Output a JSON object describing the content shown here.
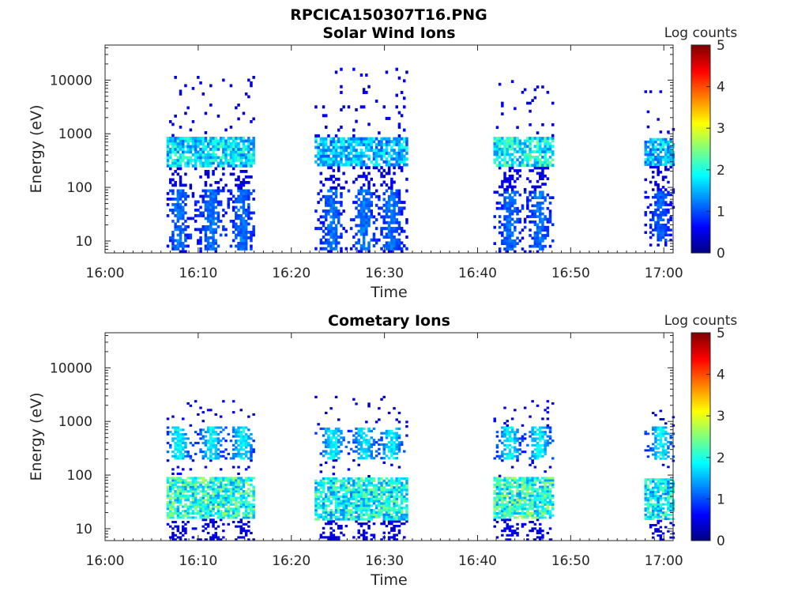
{
  "figure": {
    "title": "RPCICA150307T16.PNG"
  },
  "chart_data": [
    {
      "type": "heatmap",
      "title": "Solar Wind Ions",
      "xlabel": "Time",
      "ylabel": "Energy (eV)",
      "x_tick_labels": [
        "16:00",
        "16:10",
        "16:20",
        "16:30",
        "16:40",
        "16:50",
        "17:00"
      ],
      "x_ticks_minutes": [
        0,
        10,
        20,
        30,
        40,
        50,
        60
      ],
      "xlim_minutes": [
        0,
        61
      ],
      "y_scale": "log",
      "ylim": [
        6,
        45000
      ],
      "y_tick_labels": [
        "10",
        "100",
        "1000",
        "10000"
      ],
      "y_ticks": [
        10,
        100,
        1000,
        10000
      ],
      "colorbar": {
        "label": "Log counts",
        "range": [
          0,
          5
        ],
        "tick_labels": [
          "0",
          "1",
          "2",
          "3",
          "4",
          "5"
        ],
        "colormap": "jet"
      },
      "clusters": [
        {
          "start": 6.6,
          "end": 16.0,
          "emin": 6,
          "emax": 12000,
          "core_emin": 250,
          "core_emax": 900,
          "core_level": 2.0,
          "low_emin": 7,
          "low_emax": 90,
          "low_level": 0.8,
          "peaks_minutes": [
            7.8,
            11.3,
            14.6
          ]
        },
        {
          "start": 22.5,
          "end": 32.3,
          "emin": 6,
          "emax": 17000,
          "core_emin": 250,
          "core_emax": 900,
          "core_level": 1.8,
          "low_emin": 7,
          "low_emax": 90,
          "low_level": 0.8,
          "peaks_minutes": [
            24.3,
            27.7,
            30.6
          ]
        },
        {
          "start": 41.7,
          "end": 48.0,
          "emin": 6,
          "emax": 10000,
          "core_emin": 250,
          "core_emax": 900,
          "core_level": 2.2,
          "low_emin": 7,
          "low_emax": 90,
          "low_level": 0.8,
          "peaks_minutes": [
            43.3,
            46.5
          ]
        },
        {
          "start": 57.9,
          "end": 61.0,
          "emin": 8,
          "emax": 8000,
          "core_emin": 250,
          "core_emax": 800,
          "core_level": 1.8,
          "low_emin": 10,
          "low_emax": 90,
          "low_level": 0.7,
          "peaks_minutes": [
            59.5
          ]
        }
      ]
    },
    {
      "type": "heatmap",
      "title": "Cometary Ions",
      "xlabel": "Time",
      "ylabel": "Energy (eV)",
      "x_tick_labels": [
        "16:00",
        "16:10",
        "16:20",
        "16:30",
        "16:40",
        "16:50",
        "17:00"
      ],
      "x_ticks_minutes": [
        0,
        10,
        20,
        30,
        40,
        50,
        60
      ],
      "xlim_minutes": [
        0,
        61
      ],
      "y_scale": "log",
      "ylim": [
        6,
        45000
      ],
      "y_tick_labels": [
        "10",
        "100",
        "1000",
        "10000"
      ],
      "y_ticks": [
        10,
        100,
        1000,
        10000
      ],
      "colorbar": {
        "label": "Log counts",
        "range": [
          0,
          5
        ],
        "tick_labels": [
          "0",
          "1",
          "2",
          "3",
          "4",
          "5"
        ],
        "colormap": "jet"
      },
      "clusters": [
        {
          "start": 6.6,
          "end": 16.0,
          "emin": 6,
          "emax": 2500,
          "core_emin": 15,
          "core_emax": 90,
          "core_level": 2.4,
          "low_emin": 200,
          "low_emax": 800,
          "low_level": 1.0,
          "peaks_minutes": [
            7.8,
            11.3,
            14.6
          ]
        },
        {
          "start": 22.5,
          "end": 32.3,
          "emin": 6,
          "emax": 3000,
          "core_emin": 15,
          "core_emax": 90,
          "core_level": 2.2,
          "low_emin": 200,
          "low_emax": 800,
          "low_level": 1.0,
          "peaks_minutes": [
            24.3,
            27.7,
            30.6
          ]
        },
        {
          "start": 41.7,
          "end": 48.0,
          "emin": 6,
          "emax": 2500,
          "core_emin": 15,
          "core_emax": 90,
          "core_level": 2.4,
          "low_emin": 200,
          "low_emax": 800,
          "low_level": 1.0,
          "peaks_minutes": [
            43.3,
            46.5
          ]
        },
        {
          "start": 57.9,
          "end": 61.0,
          "emin": 6,
          "emax": 1800,
          "core_emin": 15,
          "core_emax": 90,
          "core_level": 2.1,
          "low_emin": 200,
          "low_emax": 800,
          "low_level": 1.0,
          "peaks_minutes": [
            59.5
          ]
        }
      ]
    }
  ]
}
